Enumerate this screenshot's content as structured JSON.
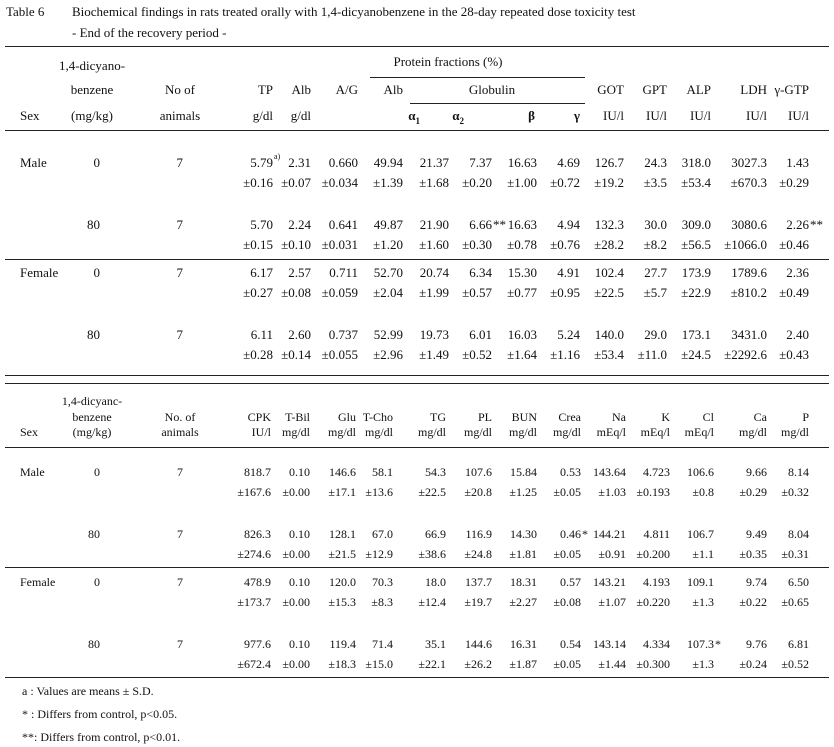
{
  "title": {
    "label": "Table 6",
    "text": "Biochemical findings in rats treated orally with 1,4-dicyanobenzene in the 28-day repeated dose toxicity test",
    "subtitle": "- End of the recovery period -"
  },
  "table1": {
    "header": {
      "sex": "Sex",
      "dose": [
        "1,4-dicyano-",
        "benzene",
        "(mg/kg)"
      ],
      "animals": [
        "No of",
        "animals"
      ],
      "group": "Protein fractions (%)",
      "globulin": "Globulin",
      "columns": [
        {
          "name": "TP",
          "unit": "g/dl"
        },
        {
          "name": "Alb",
          "unit": "g/dl"
        },
        {
          "name": "A/G"
        },
        {
          "name": "Alb"
        },
        {
          "name": "α",
          "sub": "1"
        },
        {
          "name": "α",
          "sub": "2"
        },
        {
          "name": "β"
        },
        {
          "name": "γ"
        },
        {
          "name": "GOT",
          "unit": "IU/l"
        },
        {
          "name": "GPT",
          "unit": "IU/l"
        },
        {
          "name": "ALP",
          "unit": "IU/l"
        },
        {
          "name": "LDH",
          "unit": "IU/l"
        },
        {
          "name": "γ-GTP",
          "unit": "IU/l"
        }
      ]
    },
    "rows": [
      {
        "sex": "Male",
        "dose": "0",
        "n": "7",
        "mean": [
          {
            "value": "5.79",
            "mark": "a)"
          },
          "2.31",
          "0.660",
          "49.94",
          "21.37",
          "7.37",
          "16.63",
          "4.69",
          "126.7",
          "24.3",
          "318.0",
          "3027.3",
          "1.43"
        ],
        "sd": [
          "±0.16",
          "±0.07",
          "±0.034",
          "±1.39",
          "±1.68",
          "±0.20",
          "±1.00",
          "±0.72",
          "±19.2",
          "±3.5",
          "±53.4",
          "±670.3",
          "±0.29"
        ]
      },
      {
        "dose": "80",
        "n": "7",
        "mean": [
          "5.70",
          "2.24",
          "0.641",
          "49.87",
          "21.90",
          {
            "value": "6.66",
            "mark": "**"
          },
          "16.63",
          "4.94",
          "132.3",
          "30.0",
          "309.0",
          "3080.6",
          {
            "value": "2.26",
            "mark": "**"
          }
        ],
        "sd": [
          "±0.15",
          "±0.10",
          "±0.031",
          "±1.20",
          "±1.60",
          "±0.30",
          "±0.78",
          "±0.76",
          "±28.2",
          "±8.2",
          "±56.5",
          "±1066.0",
          "±0.46"
        ]
      },
      {
        "sex": "Female",
        "dose": "0",
        "n": "7",
        "mean": [
          "6.17",
          "2.57",
          "0.711",
          "52.70",
          "20.74",
          "6.34",
          "15.30",
          "4.91",
          "102.4",
          "27.7",
          "173.9",
          "1789.6",
          "2.36"
        ],
        "sd": [
          "±0.27",
          "±0.08",
          "±0.059",
          "±2.04",
          "±1.99",
          "±0.57",
          "±0.77",
          "±0.95",
          "±22.5",
          "±5.7",
          "±22.9",
          "±810.2",
          "±0.49"
        ]
      },
      {
        "dose": "80",
        "n": "7",
        "mean": [
          "6.11",
          "2.60",
          "0.737",
          "52.99",
          "19.73",
          "6.01",
          "16.03",
          "5.24",
          "140.0",
          "29.0",
          "173.1",
          "3431.0",
          "2.40"
        ],
        "sd": [
          "±0.28",
          "±0.14",
          "±0.055",
          "±2.96",
          "±1.49",
          "±0.52",
          "±1.64",
          "±1.16",
          "±53.4",
          "±11.0",
          "±24.5",
          "±2292.6",
          "±0.43"
        ]
      }
    ]
  },
  "table2": {
    "header": {
      "sex": "Sex",
      "dose": [
        "1,4-dicyanc-",
        "benzene",
        "(mg/kg)"
      ],
      "animals": [
        "No. of",
        "animals"
      ],
      "columns": [
        {
          "name": "CPK",
          "unit": "IU/l"
        },
        {
          "name": "T-Bil",
          "unit": "mg/dl"
        },
        {
          "name": "Glu",
          "unit": "mg/dl"
        },
        {
          "name": "T-Cho",
          "unit": "mg/dl"
        },
        {
          "name": "TG",
          "unit": "mg/dl"
        },
        {
          "name": "PL",
          "unit": "mg/dl"
        },
        {
          "name": "BUN",
          "unit": "mg/dl"
        },
        {
          "name": "Crea",
          "unit": "mg/dl"
        },
        {
          "name": "Na",
          "unit": "mEq/l"
        },
        {
          "name": "K",
          "unit": "mEq/l"
        },
        {
          "name": "Cl",
          "unit": "mEq/l"
        },
        {
          "name": "Ca",
          "unit": "mg/dl"
        },
        {
          "name": "P",
          "unit": "mg/dl"
        }
      ]
    },
    "rows": [
      {
        "sex": "Male",
        "dose": "0",
        "n": "7",
        "mean": [
          "818.7",
          "0.10",
          "146.6",
          "58.1",
          "54.3",
          "107.6",
          "15.84",
          "0.53",
          "143.64",
          "4.723",
          "106.6",
          "9.66",
          "8.14"
        ],
        "sd": [
          "±167.6",
          "±0.00",
          "±17.1",
          "±13.6",
          "±22.5",
          "±20.8",
          "±1.25",
          "±0.05",
          "±1.03",
          "±0.193",
          "±0.8",
          "±0.29",
          "±0.32"
        ]
      },
      {
        "dose": "80",
        "n": "7",
        "mean": [
          "826.3",
          "0.10",
          "128.1",
          "67.0",
          "66.9",
          "116.9",
          "14.30",
          {
            "value": "0.46",
            "mark": "*"
          },
          "144.21",
          "4.811",
          "106.7",
          "9.49",
          "8.04"
        ],
        "sd": [
          "±274.6",
          "±0.00",
          "±21.5",
          "±12.9",
          "±38.6",
          "±24.8",
          "±1.81",
          "±0.05",
          "±0.91",
          "±0.200",
          "±1.1",
          "±0.35",
          "±0.31"
        ]
      },
      {
        "sex": "Female",
        "dose": "0",
        "n": "7",
        "mean": [
          "478.9",
          "0.10",
          "120.0",
          "70.3",
          "18.0",
          "137.7",
          "18.31",
          "0.57",
          "143.21",
          "4.193",
          "109.1",
          "9.74",
          "6.50"
        ],
        "sd": [
          "±173.7",
          "±0.00",
          "±15.3",
          "±8.3",
          "±12.4",
          "±19.7",
          "±2.27",
          "±0.08",
          "±1.07",
          "±0.220",
          "±1.3",
          "±0.22",
          "±0.65"
        ]
      },
      {
        "dose": "80",
        "n": "7",
        "mean": [
          "977.6",
          "0.10",
          "119.4",
          "71.4",
          "35.1",
          "144.6",
          "16.31",
          "0.54",
          "143.14",
          "4.334",
          {
            "value": "107.3",
            "mark": "*"
          },
          "9.76",
          "6.81"
        ],
        "sd": [
          "±672.4",
          "±0.00",
          "±18.3",
          "±15.0",
          "±22.1",
          "±26.2",
          "±1.87",
          "±0.05",
          "±1.44",
          "±0.300",
          "±1.3",
          "±0.24",
          "±0.52"
        ]
      }
    ]
  },
  "footnotes": [
    "a : Values are means ± S.D.",
    "* : Differs from control, p<0.05.",
    "**: Differs from control, p<0.01."
  ]
}
